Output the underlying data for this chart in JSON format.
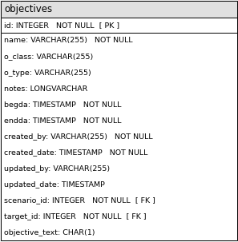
{
  "title": "objectives",
  "pk_row": "id: INTEGER   NOT NULL  [ PK ]",
  "fields": [
    "name: VARCHAR(255)   NOT NULL",
    "o_class: VARCHAR(255)",
    "o_type: VARCHAR(255)",
    "notes: LONGVARCHAR",
    "begda: TIMESTAMP   NOT NULL",
    "endda: TIMESTAMP   NOT NULL",
    "created_by: VARCHAR(255)   NOT NULL",
    "created_date: TIMESTAMP   NOT NULL",
    "updated_by: VARCHAR(255)",
    "updated_date: TIMESTAMP",
    "scenario_id: INTEGER   NOT NULL  [ FK ]",
    "target_id: INTEGER   NOT NULL  [ FK ]",
    "objective_text: CHAR(1)"
  ],
  "bg_title": "#e0e0e0",
  "bg_pk": "#ffffff",
  "bg_fields": "#ffffff",
  "border_color": "#000000",
  "text_color": "#000000",
  "font_size": 6.8,
  "title_font_size": 8.5,
  "font_family": "DejaVu Sans"
}
